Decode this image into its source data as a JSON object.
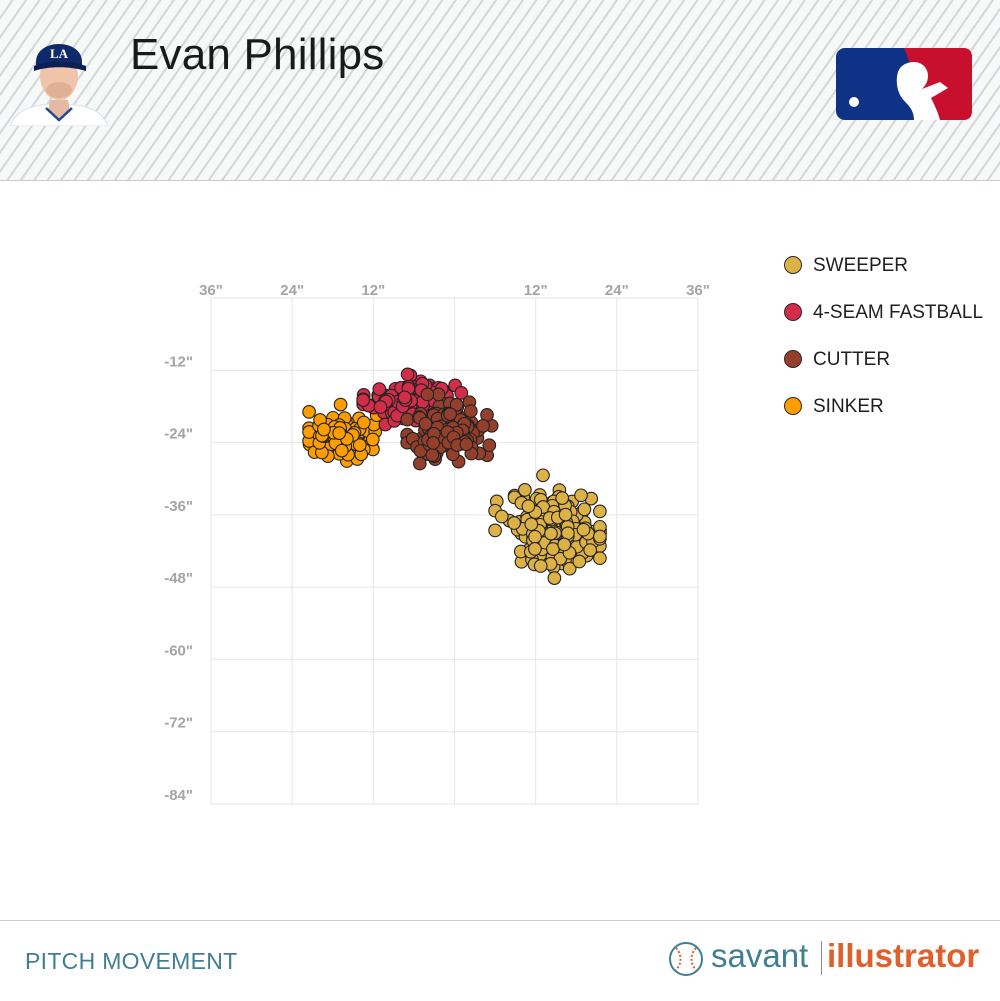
{
  "header": {
    "player_name": "Evan Phillips",
    "headshot_icon": "player-headshot-icon",
    "logo_icon": "mlb-logo-icon"
  },
  "footer": {
    "title": "PITCH MOVEMENT",
    "brand_savant": "savant",
    "brand_illustrator": "illustrator",
    "brand_icon": "baseball-icon"
  },
  "colors": {
    "sweeper": "#dcb145",
    "fastball": "#d22d49",
    "cutter": "#933f2c",
    "sinker": "#fe9d00",
    "footer_teal": "#3e7f93",
    "illustrator_orange": "#e0602c",
    "mlb_blue": "#0e3386",
    "mlb_red": "#c8102e"
  },
  "chart_data": {
    "type": "scatter",
    "title": "",
    "xlabel": "",
    "ylabel": "",
    "xlim": [
      -36,
      36
    ],
    "ylim": [
      -84,
      0
    ],
    "x_ticks": [
      {
        "value": -36,
        "label": "36\""
      },
      {
        "value": -24,
        "label": "24\""
      },
      {
        "value": -12,
        "label": "12\""
      },
      {
        "value": 12,
        "label": "12\""
      },
      {
        "value": 24,
        "label": "24\""
      },
      {
        "value": 36,
        "label": "36\""
      }
    ],
    "y_ticks": [
      {
        "value": -12,
        "label": "-12\""
      },
      {
        "value": -24,
        "label": "-24\""
      },
      {
        "value": -36,
        "label": "-36\""
      },
      {
        "value": -48,
        "label": "-48\""
      },
      {
        "value": -60,
        "label": "-60\""
      },
      {
        "value": -72,
        "label": "-72\""
      },
      {
        "value": -84,
        "label": "-84\""
      }
    ],
    "grid": true,
    "legend_position": "right",
    "series": [
      {
        "name": "SWEEPER",
        "color": "#dcb145",
        "count": 220,
        "center": [
          15.5,
          -38.5
        ],
        "spread": [
          3.6,
          3.0
        ],
        "x_range": [
          6,
          21.5
        ],
        "y_range": [
          -46.5,
          -28
        ]
      },
      {
        "name": "4-SEAM FASTBALL",
        "color": "#d22d49",
        "count": 150,
        "center": [
          -6.5,
          -17.0
        ],
        "spread": [
          3.2,
          1.6
        ],
        "x_range": [
          -13.5,
          1
        ],
        "y_range": [
          -21,
          -12.5
        ]
      },
      {
        "name": "CUTTER",
        "color": "#933f2c",
        "count": 150,
        "center": [
          -1.0,
          -22.0
        ],
        "spread": [
          2.8,
          2.4
        ],
        "x_range": [
          -7,
          5.5
        ],
        "y_range": [
          -28.5,
          -16
        ]
      },
      {
        "name": "SINKER",
        "color": "#fe9d00",
        "count": 95,
        "center": [
          -16.8,
          -23.0
        ],
        "spread": [
          2.6,
          2.1
        ],
        "x_range": [
          -21.5,
          -9
        ],
        "y_range": [
          -27.5,
          -14
        ]
      }
    ]
  }
}
